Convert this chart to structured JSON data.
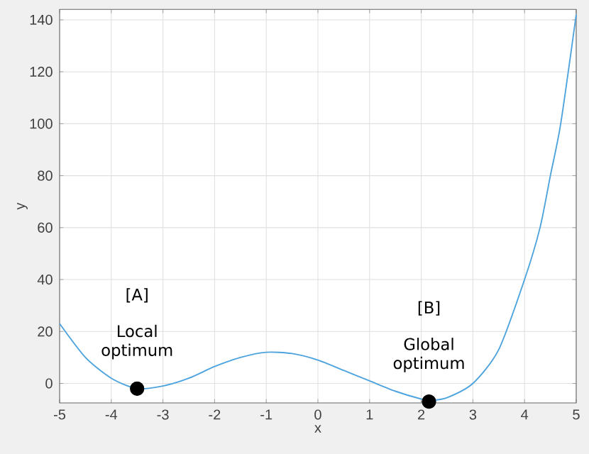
{
  "chart_data": {
    "type": "line",
    "xlabel": "x",
    "ylabel": "y",
    "xlim": [
      -5,
      5
    ],
    "ylim": [
      -7.5,
      144
    ],
    "xticks": [
      -5,
      -4,
      -3,
      -2,
      -1,
      0,
      1,
      2,
      3,
      4,
      5
    ],
    "yticks": [
      0,
      20,
      40,
      60,
      80,
      100,
      120,
      140
    ],
    "grid": true,
    "series": [
      {
        "color": "#4da3dd",
        "marker": "none",
        "x": [
          -5,
          -4.5,
          -4,
          -3.5,
          -3,
          -2.5,
          -2,
          -1.5,
          -1,
          -0.5,
          0,
          0.5,
          1,
          1.5,
          2,
          2.2,
          2.5,
          3,
          3.5,
          4,
          4.3,
          4.5,
          4.7,
          5
        ],
        "values": [
          23,
          10,
          2,
          -2,
          -1,
          2,
          6.5,
          10,
          12,
          11.5,
          9,
          5,
          1,
          -3,
          -6,
          -6.5,
          -5.5,
          0,
          13,
          40,
          60,
          80,
          100,
          142
        ]
      },
      {
        "type": "scatter",
        "color": "#000000",
        "marker": "circle",
        "x": [
          -3.5,
          2.15
        ],
        "values": [
          -2,
          -7
        ]
      }
    ],
    "annotations": [
      "Local optimum",
      "[A]",
      "Global optimum",
      "[B]"
    ]
  }
}
